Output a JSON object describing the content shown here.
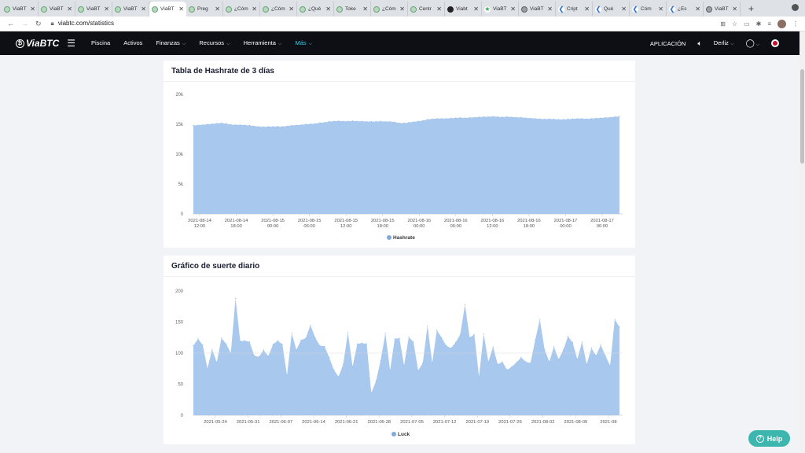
{
  "browser": {
    "tabs": [
      {
        "label": "ViaBT",
        "icon": "viabtc-favicon"
      },
      {
        "label": "ViaBT",
        "icon": "viabtc-favicon"
      },
      {
        "label": "ViaBT",
        "icon": "viabtc-favicon"
      },
      {
        "label": "ViaBT",
        "icon": "viabtc-favicon"
      },
      {
        "label": "ViaBT",
        "icon": "viabtc-favicon",
        "active": true
      },
      {
        "label": "Preg",
        "icon": "viabtc-favicon"
      },
      {
        "label": "¿Cóm",
        "icon": "viabtc-favicon"
      },
      {
        "label": "¿Cóm",
        "icon": "viabtc-favicon"
      },
      {
        "label": "¿Qué",
        "icon": "viabtc-favicon"
      },
      {
        "label": "Toke",
        "icon": "viabtc-favicon"
      },
      {
        "label": "¿Cóm",
        "icon": "viabtc-favicon"
      },
      {
        "label": "Centr",
        "icon": "viabtc-favicon"
      },
      {
        "label": "Viabt",
        "icon": "github-favicon"
      },
      {
        "label": "ViaBT",
        "icon": "star-favicon"
      },
      {
        "label": "ViaBT",
        "icon": "globe-favicon"
      },
      {
        "label": "Cript",
        "icon": "c-favicon"
      },
      {
        "label": "Qué",
        "icon": "c-favicon"
      },
      {
        "label": "Cóm",
        "icon": "c-favicon"
      },
      {
        "label": "¿Es",
        "icon": "c-favicon"
      },
      {
        "label": "ViaBT",
        "icon": "globe-favicon"
      }
    ],
    "url": "viabtc.com/statistics"
  },
  "nav": {
    "logo": "ViaBTC",
    "items": [
      {
        "label": "Piscina",
        "caret": false
      },
      {
        "label": "Activos",
        "caret": false
      },
      {
        "label": "Finanzas",
        "caret": true
      },
      {
        "label": "Recursos",
        "caret": true
      },
      {
        "label": "Herramienta",
        "caret": true
      },
      {
        "label": "Más",
        "caret": true,
        "active": true
      }
    ],
    "app_label": "APLICACIÓN",
    "user": "Derliz"
  },
  "cards": {
    "hashrate_title": "Tabla de Hashrate de 3 días",
    "luck_title": "Gráfico de suerte diario"
  },
  "help": {
    "label": "Help"
  },
  "chart_data": [
    {
      "type": "area",
      "title": "Tabla de Hashrate de 3 días",
      "series": [
        {
          "name": "Hashrate",
          "values": [
            14800,
            14850,
            14900,
            15000,
            15050,
            15150,
            15200,
            15100,
            14950,
            14900,
            14900,
            14850,
            14800,
            14700,
            14600,
            14550,
            14600,
            14600,
            14650,
            14600,
            14700,
            14800,
            14850,
            14900,
            15000,
            15050,
            15100,
            15250,
            15300,
            15450,
            15500,
            15550,
            15500,
            15500,
            15550,
            15500,
            15500,
            15450,
            15450,
            15450,
            15500,
            15450,
            15450,
            15350,
            15200,
            15200,
            15300,
            15400,
            15500,
            15600,
            15800,
            15900,
            15950,
            15950,
            15950,
            16000,
            16050,
            16100,
            16050,
            16100,
            16150,
            16200,
            16250,
            16250,
            16300,
            16250,
            16200,
            16250,
            16200,
            16150,
            16150,
            16050,
            16000,
            15950,
            15900,
            15850,
            15900,
            15850,
            15800,
            15800,
            15850,
            15900,
            15950,
            15950,
            15900,
            15950,
            16000,
            16050,
            16100,
            16150,
            16250,
            16300
          ],
          "color": "#a8c8ee"
        }
      ],
      "x_ticks": [
        [
          "2021-08-14",
          "12:00"
        ],
        [
          "2021-08-14",
          "18:00"
        ],
        [
          "2021-08-15",
          "00:00"
        ],
        [
          "2021-08-15",
          "06:00"
        ],
        [
          "2021-08-15",
          "12:00"
        ],
        [
          "2021-08-15",
          "18:00"
        ],
        [
          "2021-08-16",
          "00:00"
        ],
        [
          "2021-08-16",
          "06:00"
        ],
        [
          "2021-08-16",
          "12:00"
        ],
        [
          "2021-08-16",
          "18:00"
        ],
        [
          "2021-08-17",
          "00:00"
        ],
        [
          "2021-08-17",
          "06:00"
        ]
      ],
      "y_ticks": [
        "0",
        "5k",
        "10k",
        "15k",
        "20k"
      ],
      "ylim": [
        0,
        20000
      ],
      "legend": "bottom"
    },
    {
      "type": "area",
      "title": "Gráfico de suerte diario",
      "series": [
        {
          "name": "Luck",
          "values": [
            112,
            123,
            113,
            75,
            106,
            85,
            124,
            115,
            100,
            188,
            119,
            120,
            118,
            96,
            94,
            105,
            95,
            114,
            120,
            114,
            64,
            132,
            105,
            121,
            124,
            145,
            125,
            112,
            111,
            93,
            73,
            62,
            82,
            133,
            78,
            115,
            116,
            115,
            36,
            55,
            88,
            132,
            72,
            123,
            124,
            80,
            126,
            118,
            72,
            84,
            144,
            84,
            137,
            125,
            112,
            108,
            117,
            130,
            178,
            125,
            130,
            62,
            131,
            86,
            110,
            82,
            86,
            73,
            78,
            85,
            93,
            86,
            84,
            121,
            154,
            106,
            86,
            110,
            90,
            105,
            127,
            117,
            90,
            118,
            82,
            108,
            96,
            113,
            96,
            80,
            154,
            142
          ],
          "color": "#a8c8ee"
        }
      ],
      "x_ticks": [
        "2021-05-24",
        "2021-05-31",
        "2021-06-07",
        "2021-06-14",
        "2021-06-21",
        "2021-06-28",
        "2021-07-05",
        "2021-07-12",
        "2021-07-19",
        "2021-07-26",
        "2021-08-02",
        "2021-08-09",
        "2021-08"
      ],
      "y_ticks": [
        "0",
        "50",
        "100",
        "150",
        "200"
      ],
      "ylim": [
        0,
        200
      ],
      "reference_line": 100,
      "legend": "bottom"
    }
  ]
}
